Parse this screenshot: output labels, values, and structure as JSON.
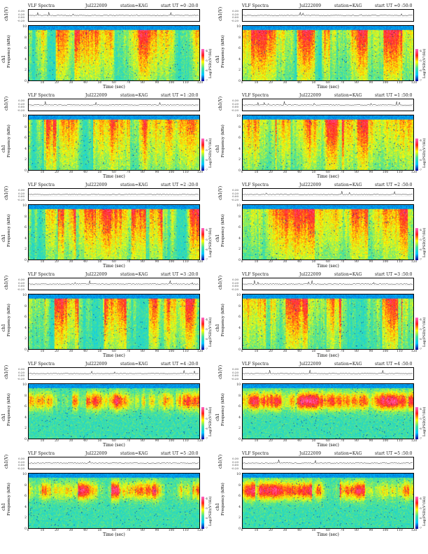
{
  "figure": {
    "x_label": "Time (sec)",
    "y_label_channel": "ch1",
    "y_label_freq": "Frequency (kHz)",
    "wave_label": "ch1(V)",
    "wave_ticks": [
      "0.30",
      "0.20",
      "0.00",
      "-0.20"
    ],
    "colorbar_label": "Log(PSD)(V²/Hz)",
    "colorbar_ticks": [
      "-4",
      "-5",
      "-6",
      "-7"
    ],
    "x_ticks": [
      "0",
      "10",
      "20",
      "30",
      "40",
      "50",
      "60",
      "70",
      "80",
      "90",
      "100",
      "110",
      "120"
    ],
    "y_ticks": [
      "10",
      "8",
      "6",
      "4",
      "2",
      "0"
    ]
  },
  "panels": [
    {
      "title": "VLF Spectra",
      "date": "Jul222009",
      "station": "station=KAG",
      "start": "start UT =0 :20:0",
      "has_ylabel": true
    },
    {
      "title": "VLF Spectra",
      "date": "Jul222009",
      "station": "station=KAG",
      "start": "start UT =0 :50:0",
      "has_ylabel": false
    },
    {
      "title": "VLF Spectra",
      "date": "Jul222009",
      "station": "station=KAG",
      "start": "start UT =1 :20:0",
      "has_ylabel": true
    },
    {
      "title": "VLF Spectra",
      "date": "Jul222009",
      "station": "station=KAG",
      "start": "start UT =1 :50:0",
      "has_ylabel": false
    },
    {
      "title": "VLF Spectra",
      "date": "Jul222009",
      "station": "station=KAG",
      "start": "start UT =2 :20:0",
      "has_ylabel": true
    },
    {
      "title": "VLF Spectra",
      "date": "Jul222009",
      "station": "station=KAG",
      "start": "start UT =2 :50:0",
      "has_ylabel": false
    },
    {
      "title": "VLF Spectra",
      "date": "Jul222009",
      "station": "station=KAG",
      "start": "start UT =3 :20:0",
      "has_ylabel": true
    },
    {
      "title": "VLF Spectra",
      "date": "Jul222009",
      "station": "station=KAG",
      "start": "start UT =3 :50:0",
      "has_ylabel": false
    },
    {
      "title": "VLF Spectra",
      "date": "Jul222009",
      "station": "station=KAG",
      "start": "start UT =4 :20:0",
      "has_ylabel": true
    },
    {
      "title": "VLF Spectra",
      "date": "Jul222009",
      "station": "station=KAG",
      "start": "start UT =4 :50:0",
      "has_ylabel": false
    },
    {
      "title": "VLF Spectra",
      "date": "Jul222009",
      "station": "station=KAG",
      "start": "start UT =5 :20:0",
      "has_ylabel": true
    },
    {
      "title": "VLF Spectra",
      "date": "Jul222009",
      "station": "station=KAG",
      "start": "start UT =5 :50:0",
      "has_ylabel": false
    }
  ],
  "chart_data": {
    "type": "heatmap",
    "description_units": "spectrogram: x = Time (sec), y = Frequency (kHz), color = Log(PSD)(V²/Hz)",
    "xlim": [
      0,
      120
    ],
    "ylim": [
      0,
      10
    ],
    "colorbar_range": [
      -7,
      -4
    ],
    "colormap": [
      "#0000a0",
      "#00c8ff",
      "#40e0a0",
      "#ffff00",
      "#ff2020",
      "#ff66cc"
    ],
    "panel_count": 12,
    "layout": "6 rows x 2 columns"
  }
}
